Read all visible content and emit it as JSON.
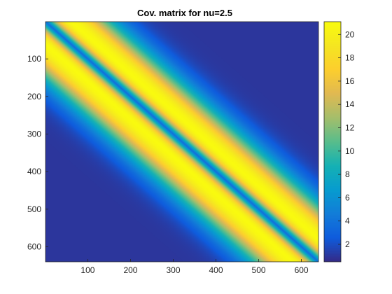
{
  "chart_data": {
    "type": "heatmap",
    "title": "Cov. matrix for nu=2.5",
    "xlabel": "",
    "ylabel": "",
    "matrix_size": 640,
    "xlim": [
      1,
      640
    ],
    "ylim": [
      1,
      640
    ],
    "y_reversed": true,
    "x_ticks": [
      100,
      200,
      300,
      400,
      500,
      600
    ],
    "y_ticks": [
      100,
      200,
      300,
      400,
      500,
      600
    ],
    "colorbar": {
      "range": [
        0.5,
        21.1
      ],
      "ticks": [
        2,
        4,
        6,
        8,
        10,
        12,
        14,
        16,
        18,
        20
      ]
    },
    "colormap": "parula",
    "pattern": {
      "description_values": "banded structure along the main diagonal",
      "diagonal_value": 3.5,
      "peak_value": 21,
      "peak_offset": 60,
      "far_value": 1
    },
    "grid": false
  }
}
